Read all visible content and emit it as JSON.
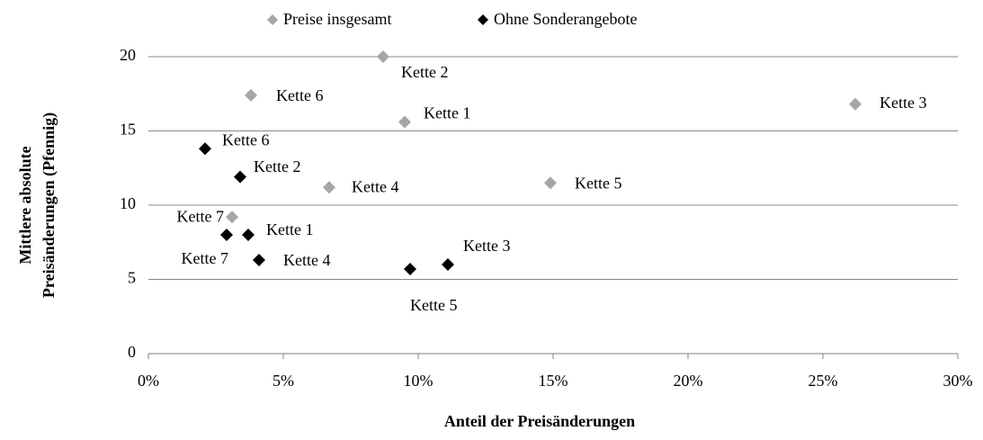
{
  "chart_data": {
    "type": "scatter",
    "x_label": "Anteil der Preisänderungen",
    "y_label": [
      "Mittlere absolute",
      "Preisänderungen (Pfennig)"
    ],
    "xlim": [
      0,
      30
    ],
    "xticks": [
      {
        "value": 0,
        "label": "0%"
      },
      {
        "value": 5,
        "label": "5%"
      },
      {
        "value": 10,
        "label": "10%"
      },
      {
        "value": 15,
        "label": "15%"
      },
      {
        "value": 20,
        "label": "20%"
      },
      {
        "value": 25,
        "label": "25%"
      },
      {
        "value": 30,
        "label": "30%"
      }
    ],
    "ylim": [
      0,
      20
    ],
    "yticks": [
      0,
      5,
      10,
      15,
      20
    ],
    "grid": true,
    "legend": "top",
    "series": [
      {
        "name": "Preise insgesamt",
        "color": "#a6a6a6",
        "labels": [
          "Kette 2",
          "Kette 6",
          "Kette 1",
          "Kette 3",
          "Kette 4",
          "Kette 5",
          "Kette 7"
        ],
        "x": [
          8.7,
          3.8,
          9.5,
          26.2,
          6.7,
          14.9,
          3.1
        ],
        "values": [
          20.0,
          17.4,
          15.6,
          16.8,
          11.2,
          11.5,
          9.2
        ]
      },
      {
        "name": "Ohne Sonderangebote",
        "color": "#000000",
        "labels": [
          "Kette 6",
          "Kette 2",
          "Kette 1",
          "Kette 7",
          "Kette 4",
          "Kette 5",
          "Kette 3"
        ],
        "x": [
          2.1,
          3.4,
          3.7,
          2.9,
          4.1,
          9.7,
          11.1
        ],
        "values": [
          13.8,
          11.9,
          8.0,
          8.0,
          6.3,
          5.7,
          6.0
        ]
      }
    ]
  }
}
